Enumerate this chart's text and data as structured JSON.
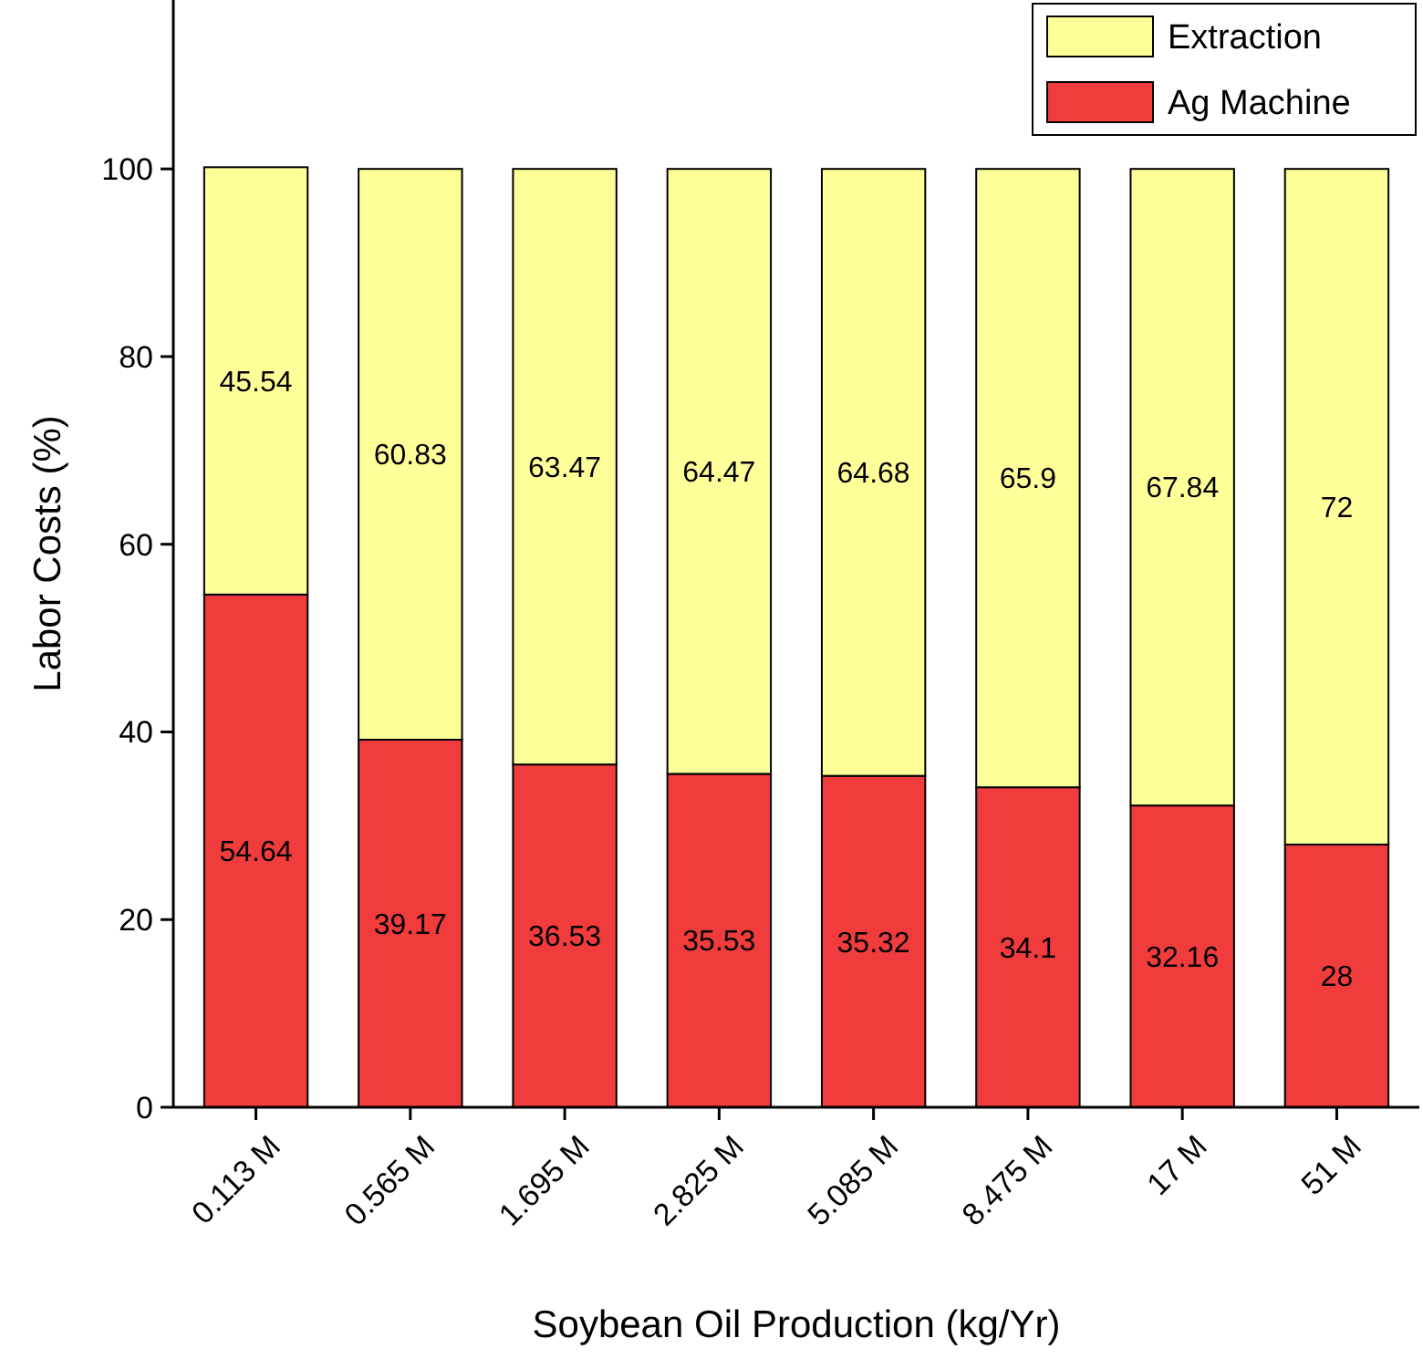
{
  "chart_data": {
    "type": "bar",
    "stacked": true,
    "xlabel": "Soybean Oil Production (kg/Yr)",
    "ylabel": "Labor Costs (%)",
    "categories": [
      "0.113 M",
      "0.565 M",
      "1.695 M",
      "2.825 M",
      "5.085 M",
      "8.475 M",
      "17 M",
      "51 M"
    ],
    "series": [
      {
        "name": "Ag Machine",
        "color": "#f03c3c",
        "values": [
          54.64,
          39.17,
          36.53,
          35.53,
          35.32,
          34.1,
          32.16,
          28
        ]
      },
      {
        "name": "Extraction",
        "color": "#ffff99",
        "values": [
          45.54,
          60.83,
          63.47,
          64.47,
          64.68,
          65.9,
          67.84,
          72
        ]
      }
    ],
    "ylim": [
      0,
      118
    ],
    "yticks": [
      0,
      20,
      40,
      60,
      80,
      100
    ],
    "data_labels": true,
    "legend": "top right",
    "grid": false
  }
}
